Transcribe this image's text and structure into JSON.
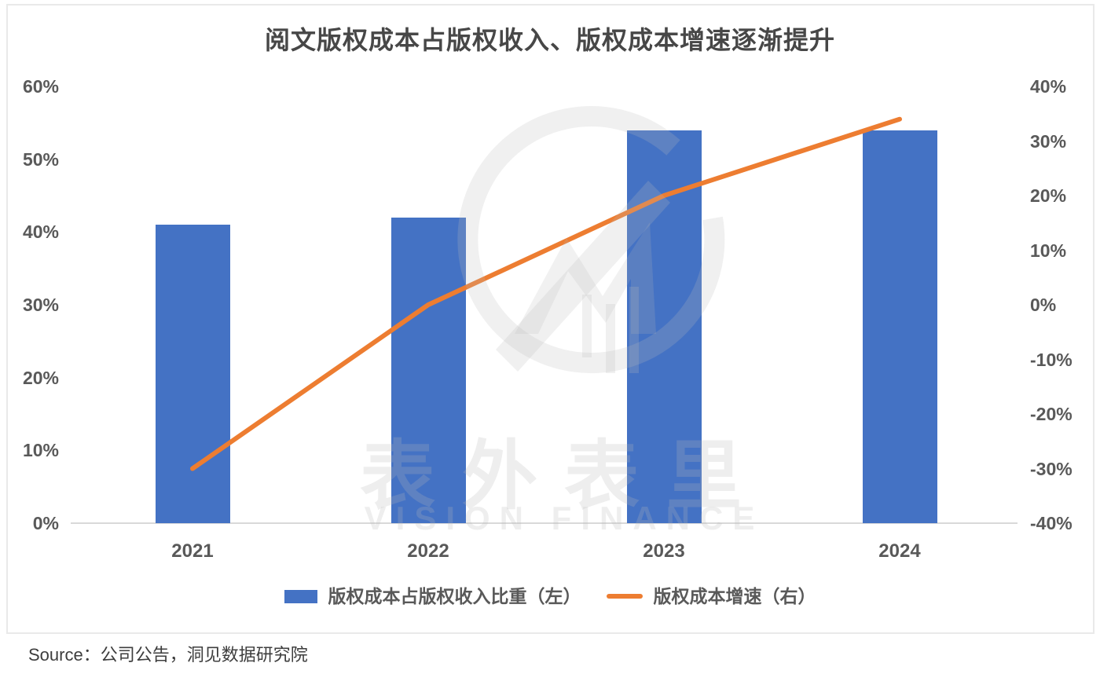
{
  "title": "阅文版权成本占版权收入、版权成本增速逐渐提升",
  "source_note": "Source：公司公告，洞见数据研究院",
  "watermark": {
    "cn": "表外表里",
    "en": "VISION FINANCE",
    "logo": "ring-arrow-mountain-icon"
  },
  "colors": {
    "bar": "#4472C4",
    "line": "#ED7D31",
    "axis_text": "#595959",
    "title_text": "#474747",
    "axis_line": "#D9D9D9",
    "frame_border": "#E9E9E9",
    "watermark": "rgba(185,185,185,0.24)"
  },
  "legend": [
    {
      "label": "版权成本占版权收入比重（左）",
      "marker": "bar-swatch"
    },
    {
      "label": "版权成本增速（右）",
      "marker": "line-swatch"
    }
  ],
  "left_axis": {
    "ticks": [
      "60%",
      "50%",
      "40%",
      "30%",
      "20%",
      "10%",
      "0%"
    ],
    "min": 0,
    "max": 60
  },
  "right_axis": {
    "ticks": [
      "40%",
      "30%",
      "20%",
      "10%",
      "0%",
      "-10%",
      "-20%",
      "-30%",
      "-40%"
    ],
    "min": -40,
    "max": 40
  },
  "chart_data": {
    "type": "bar",
    "subtype": "combo-bar-line-dual-axis",
    "title": "阅文版权成本占版权收入、版权成本增速逐渐提升",
    "categories": [
      "2021",
      "2022",
      "2023",
      "2024"
    ],
    "series": [
      {
        "name": "版权成本占版权收入比重（左）",
        "type": "bar",
        "axis": "left",
        "unit": "%",
        "values": [
          41,
          42,
          54,
          54
        ]
      },
      {
        "name": "版权成本增速（右）",
        "type": "line",
        "axis": "right",
        "unit": "%",
        "values": [
          -30,
          0,
          20,
          34
        ]
      }
    ],
    "left_ylim": [
      0,
      60
    ],
    "right_ylim": [
      -40,
      40
    ],
    "grid": false,
    "legend_position": "bottom",
    "xlabel": "",
    "ylabel_left": "",
    "ylabel_right": ""
  }
}
